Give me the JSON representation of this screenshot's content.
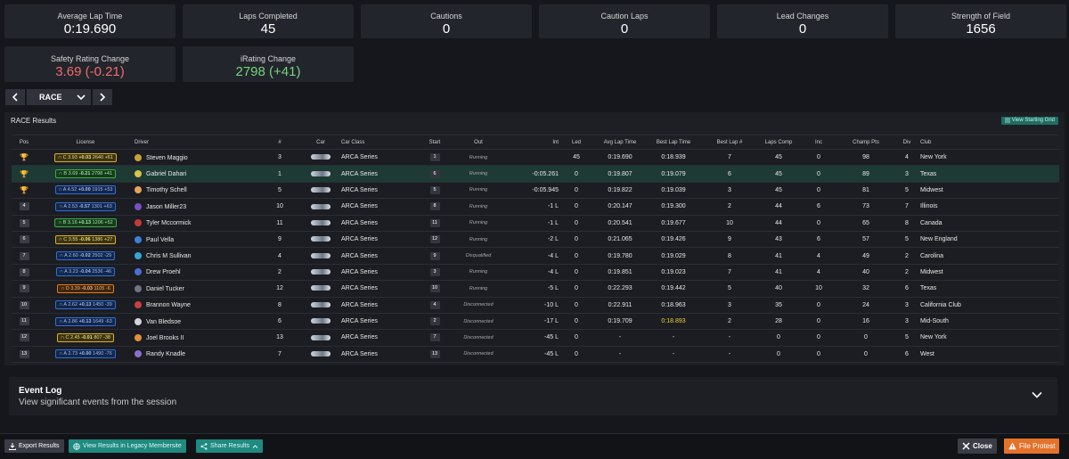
{
  "stats": [
    {
      "label": "Average Lap Time",
      "value": "0:19.690"
    },
    {
      "label": "Laps Completed",
      "value": "45"
    },
    {
      "label": "Cautions",
      "value": "0"
    },
    {
      "label": "Caution Laps",
      "value": "0"
    },
    {
      "label": "Lead Changes",
      "value": "0"
    },
    {
      "label": "Strength of Field",
      "value": "1656"
    }
  ],
  "rating_stats": [
    {
      "label": "Safety Rating Change",
      "value": "3.69 (-0.21)",
      "tone": "negative"
    },
    {
      "label": "iRating Change",
      "value": "2798 (+41)",
      "tone": "positive"
    }
  ],
  "session_nav": {
    "prev": "‹",
    "selected": "RACE",
    "next": "›"
  },
  "results": {
    "title": "RACE Results",
    "view_grid_label": "View Starting Grid",
    "columns": [
      "Pos",
      "License",
      "Driver",
      "#",
      "Car",
      "Car Class",
      "Start",
      "Out",
      "Int",
      "Led",
      "Avg Lap Time",
      "Best Lap Time",
      "Best Lap #",
      "Laps Comp",
      "Inc",
      "Champ Pts",
      "Div",
      "Club"
    ],
    "rows": [
      {
        "pos": "1",
        "license": {
          "class": "C",
          "sr": "3.93",
          "sr_change": "+0.03",
          "ir": "2640",
          "ir_change": "+61"
        },
        "helmet": "#c8a13a",
        "driver": "Steven Maggio",
        "number": "3",
        "car_class": "ARCA Series",
        "start": "1",
        "out": "Running",
        "int": "",
        "led": "45",
        "avg": "0:19.690",
        "best": "0:18.939",
        "best_lap": "7",
        "laps": "45",
        "inc": "0",
        "pts": "98",
        "div": "4",
        "club": "New York",
        "trophy": "gold"
      },
      {
        "pos": "2",
        "license": {
          "class": "B",
          "sr": "3.69",
          "sr_change": "-0.21",
          "ir": "2798",
          "ir_change": "+41"
        },
        "helmet": "#d9c24a",
        "driver": "Gabriel Dahari",
        "number": "1",
        "car_class": "ARCA Series",
        "start": "6",
        "out": "Running",
        "int": "-0:05.261",
        "led": "0",
        "avg": "0:19.807",
        "best": "0:19.079",
        "best_lap": "6",
        "laps": "45",
        "inc": "0",
        "pts": "89",
        "div": "3",
        "club": "Texas",
        "trophy": "silver",
        "highlight": true
      },
      {
        "pos": "3",
        "license": {
          "class": "A",
          "sr": "4.52",
          "sr_change": "+0.00",
          "ir": "1915",
          "ir_change": "+53"
        },
        "helmet": "#e4a35a",
        "driver": "Timothy Schell",
        "number": "5",
        "car_class": "ARCA Series",
        "start": "5",
        "out": "Running",
        "int": "-0:05.945",
        "led": "0",
        "avg": "0:19.822",
        "best": "0:19.039",
        "best_lap": "3",
        "laps": "45",
        "inc": "0",
        "pts": "81",
        "div": "5",
        "club": "Midwest",
        "trophy": "bronze"
      },
      {
        "pos": "4",
        "license": {
          "class": "A",
          "sr": "2.53",
          "sr_change": "-0.57",
          "ir": "1301",
          "ir_change": "+63"
        },
        "helmet": "#7a4fc0",
        "driver": "Jason Miller23",
        "number": "10",
        "car_class": "ARCA Series",
        "start": "8",
        "out": "Running",
        "int": "-1 L",
        "led": "0",
        "avg": "0:20.147",
        "best": "0:19.300",
        "best_lap": "2",
        "laps": "44",
        "inc": "6",
        "pts": "73",
        "div": "7",
        "club": "Illinois"
      },
      {
        "pos": "5",
        "license": {
          "class": "B",
          "sr": "3.16",
          "sr_change": "+0.13",
          "ir": "1206",
          "ir_change": "+52"
        },
        "helmet": "#c23b3b",
        "driver": "Tyler Mccormick",
        "number": "11",
        "car_class": "ARCA Series",
        "start": "11",
        "out": "Running",
        "int": "-1 L",
        "led": "0",
        "avg": "0:20.541",
        "best": "0:19.677",
        "best_lap": "10",
        "laps": "44",
        "inc": "0",
        "pts": "65",
        "div": "8",
        "club": "Canada"
      },
      {
        "pos": "6",
        "license": {
          "class": "C",
          "sr": "3.55",
          "sr_change": "-0.06",
          "ir": "1386",
          "ir_change": "+27"
        },
        "helmet": "#3d7fd9",
        "driver": "Paul Vella",
        "number": "9",
        "car_class": "ARCA Series",
        "start": "12",
        "out": "Running",
        "int": "-2 L",
        "led": "0",
        "avg": "0:21.065",
        "best": "0:19.426",
        "best_lap": "9",
        "laps": "43",
        "inc": "6",
        "pts": "57",
        "div": "5",
        "club": "New England"
      },
      {
        "pos": "7",
        "license": {
          "class": "A",
          "sr": "2.60",
          "sr_change": "-0.02",
          "ir": "2502",
          "ir_change": "-29"
        },
        "helmet": "#35a7d4",
        "driver": "Chris M Sullivan",
        "number": "4",
        "car_class": "ARCA Series",
        "start": "9",
        "out": "Disqualified",
        "int": "-4 L",
        "led": "0",
        "avg": "0:19.780",
        "best": "0:19.029",
        "best_lap": "8",
        "laps": "41",
        "inc": "4",
        "pts": "49",
        "div": "2",
        "club": "Carolina"
      },
      {
        "pos": "8",
        "license": {
          "class": "A",
          "sr": "3.23",
          "sr_change": "-0.04",
          "ir": "2536",
          "ir_change": "-46"
        },
        "helmet": "#4a6fd0",
        "driver": "Drew Proehl",
        "number": "2",
        "car_class": "ARCA Series",
        "start": "3",
        "out": "Running",
        "int": "-4 L",
        "led": "0",
        "avg": "0:19.851",
        "best": "0:19.023",
        "best_lap": "7",
        "laps": "41",
        "inc": "4",
        "pts": "40",
        "div": "2",
        "club": "Midwest"
      },
      {
        "pos": "9",
        "license": {
          "class": "D",
          "sr": "3.39",
          "sr_change": "-0.03",
          "ir": "1105",
          "ir_change": "-6"
        },
        "helmet": "#6e7480",
        "driver": "Daniel Tucker",
        "number": "12",
        "car_class": "ARCA Series",
        "start": "10",
        "out": "Running",
        "int": "-5 L",
        "led": "0",
        "avg": "0:22.293",
        "best": "0:19.442",
        "best_lap": "5",
        "laps": "40",
        "inc": "10",
        "pts": "32",
        "div": "6",
        "club": "Texas"
      },
      {
        "pos": "10",
        "license": {
          "class": "A",
          "sr": "2.62",
          "sr_change": "+0.13",
          "ir": "1450",
          "ir_change": "-39"
        },
        "helmet": "#c94040",
        "driver": "Brannon Wayne",
        "number": "8",
        "car_class": "ARCA Series",
        "start": "4",
        "out": "Disconnected",
        "int": "-10 L",
        "led": "0",
        "avg": "0:22.911",
        "best": "0:18.963",
        "best_lap": "3",
        "laps": "35",
        "inc": "0",
        "pts": "24",
        "div": "3",
        "club": "California Club"
      },
      {
        "pos": "11",
        "license": {
          "class": "A",
          "sr": "2.86",
          "sr_change": "+0.13",
          "ir": "1649",
          "ir_change": "-63"
        },
        "helmet": "#d0d4da",
        "driver": "Van Bledsoe",
        "number": "6",
        "car_class": "ARCA Series",
        "start": "2",
        "out": "Disconnected",
        "int": "-17 L",
        "led": "0",
        "avg": "0:19.709",
        "best": "0:18.893",
        "best_lap": "2",
        "laps": "28",
        "inc": "0",
        "pts": "16",
        "div": "3",
        "club": "Mid-South",
        "best_highlight": true
      },
      {
        "pos": "12",
        "license": {
          "class": "C",
          "sr": "2.45",
          "sr_change": "-0.01",
          "ir": "807",
          "ir_change": "-38"
        },
        "helmet": "#e0903a",
        "driver": "Joel Brooks II",
        "number": "13",
        "car_class": "ARCA Series",
        "start": "7",
        "out": "Disconnected",
        "int": "-45 L",
        "led": "0",
        "avg": "-",
        "best": "-",
        "best_lap": "-",
        "laps": "0",
        "inc": "0",
        "pts": "0",
        "div": "5",
        "club": "New York"
      },
      {
        "pos": "13",
        "license": {
          "class": "A",
          "sr": "2.73",
          "sr_change": "+0.00",
          "ir": "1490",
          "ir_change": "-76"
        },
        "helmet": "#8d6fc9",
        "driver": "Randy Knadle",
        "number": "7",
        "car_class": "ARCA Series",
        "start": "13",
        "out": "Disconnected",
        "int": "-45 L",
        "led": "0",
        "avg": "-",
        "best": "-",
        "best_lap": "-",
        "laps": "0",
        "inc": "0",
        "pts": "0",
        "div": "6",
        "club": "West"
      }
    ]
  },
  "event_log": {
    "title": "Event Log",
    "subtitle": "View significant events from the session"
  },
  "footer": {
    "export_label": "Export Results",
    "legacy_label": "View Results in Legacy Membersite",
    "share_label": "Share Results",
    "close_label": "Close",
    "protest_label": "File Protest"
  },
  "colors": {
    "accent_teal": "#1f8a80",
    "protest_orange": "#e4722a",
    "negative": "#ef6b6b",
    "positive": "#74d47a",
    "best_lap_yellow": "#f2cf36"
  }
}
